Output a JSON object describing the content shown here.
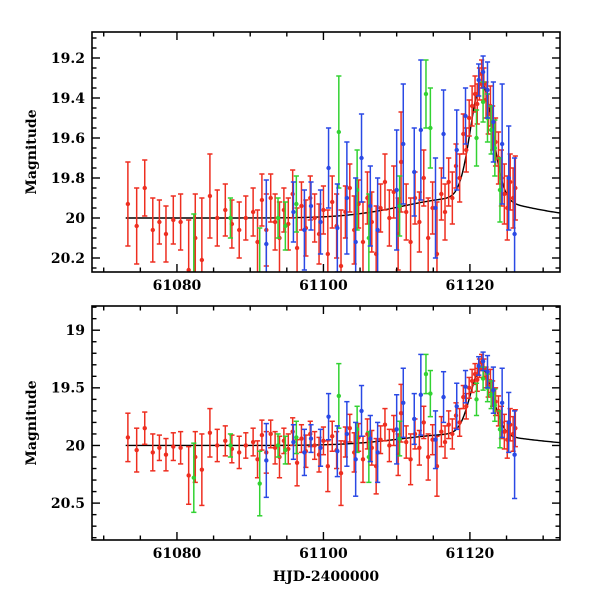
{
  "figure": {
    "background": "#ffffff",
    "description": "Two-panel astronomical light curve: magnitude versus HJD-2400000 with three telescope datasets (red, green, blue) and a black microlensing model curve peaking near HJD 61121.6 at magnitude ~19.3 over a baseline of 20.0."
  },
  "chart_data": {
    "type": "scatter",
    "title": "",
    "xlabel": "HJD-2400000",
    "ylabel": "Magnitude",
    "x_axis": {
      "lim": [
        61068.4,
        61132.3
      ],
      "major_ticks": [
        61080,
        61100,
        61120
      ],
      "major_labels": [
        "61080",
        "61100",
        "61120"
      ],
      "minor_step": 5
    },
    "panels": [
      {
        "name": "top",
        "ylabel": "Magnitude",
        "y_lim": [
          19.07,
          20.27
        ],
        "y_major_ticks": [
          19.2,
          19.4,
          19.6,
          19.8,
          20.0,
          20.2
        ],
        "y_major_labels": [
          "19.2",
          "19.4",
          "19.6",
          "19.8",
          "20",
          "20.2"
        ],
        "y_minor_step": 0.05,
        "y_inverted_note": "magnitude increases downward"
      },
      {
        "name": "bottom",
        "ylabel": "Magnitude",
        "y_lim": [
          18.79,
          20.82
        ],
        "y_major_ticks": [
          19.0,
          19.5,
          20.0,
          20.5
        ],
        "y_major_labels": [
          "19",
          "19.5",
          "20",
          "20.5"
        ],
        "y_minor_step": 0.1,
        "y_inverted_note": "magnitude increases downward"
      }
    ],
    "model": {
      "color": "#000000",
      "baseline": 20.0,
      "t_start": 61073.0,
      "components": [
        {
          "center": 61119.0,
          "sigma": 8.0,
          "amp": 0.1
        },
        {
          "center": 61121.6,
          "sigma": 1.5,
          "amp": 0.58
        }
      ]
    },
    "series": [
      {
        "name": "red",
        "color": "#ee2e20",
        "points": [
          [
            61073.3,
            19.93,
            0.21
          ],
          [
            61074.5,
            20.04,
            0.19
          ],
          [
            61075.6,
            19.85,
            0.14
          ],
          [
            61076.7,
            20.06,
            0.16
          ],
          [
            61077.6,
            20.02,
            0.11
          ],
          [
            61078.5,
            20.08,
            0.14
          ],
          [
            61079.5,
            20.01,
            0.12
          ],
          [
            61080.5,
            20.02,
            0.14
          ],
          [
            61081.6,
            20.26,
            0.25
          ],
          [
            61082.5,
            20.1,
            0.22
          ],
          [
            61083.4,
            20.21,
            0.31
          ],
          [
            61084.5,
            19.89,
            0.21
          ],
          [
            61085.5,
            20.0,
            0.14
          ],
          [
            61086.6,
            19.96,
            0.13
          ],
          [
            61087.5,
            20.03,
            0.12
          ],
          [
            61088.5,
            20.06,
            0.14
          ],
          [
            61089.4,
            20.0,
            0.11
          ],
          [
            61090.4,
            19.97,
            0.12
          ],
          [
            61091.0,
            20.12,
            0.16
          ],
          [
            61091.6,
            19.91,
            0.13
          ],
          [
            61092.2,
            20.06,
            0.18
          ],
          [
            61092.8,
            19.9,
            0.12
          ],
          [
            61093.4,
            20.02,
            0.14
          ],
          [
            61094.0,
            20.1,
            0.18
          ],
          [
            61094.6,
            19.96,
            0.11
          ],
          [
            61095.2,
            20.03,
            0.13
          ],
          [
            61095.8,
            19.88,
            0.12
          ],
          [
            61096.4,
            20.15,
            0.2
          ],
          [
            61097.0,
            19.94,
            0.12
          ],
          [
            61097.6,
            20.05,
            0.14
          ],
          [
            61098.2,
            19.9,
            0.11
          ],
          [
            61098.8,
            20.0,
            0.12
          ],
          [
            61099.4,
            20.08,
            0.15
          ],
          [
            61100.0,
            19.96,
            0.12
          ],
          [
            61100.6,
            20.18,
            0.22
          ],
          [
            61101.2,
            19.92,
            0.13
          ],
          [
            61101.8,
            20.04,
            0.16
          ],
          [
            61102.4,
            20.24,
            0.28
          ],
          [
            61103.0,
            19.97,
            0.13
          ],
          [
            61103.6,
            19.85,
            0.12
          ],
          [
            61104.2,
            20.06,
            0.17
          ],
          [
            61104.8,
            19.93,
            0.12
          ],
          [
            61105.4,
            20.12,
            0.2
          ],
          [
            61106.0,
            19.9,
            0.13
          ],
          [
            61106.6,
            20.02,
            0.15
          ],
          [
            61107.2,
            20.18,
            0.24
          ],
          [
            61107.8,
            19.95,
            0.12
          ],
          [
            61108.4,
            19.82,
            0.14
          ],
          [
            61109.0,
            20.0,
            0.14
          ],
          [
            61109.6,
            19.87,
            0.13
          ],
          [
            61110.2,
            20.08,
            0.18
          ],
          [
            61110.6,
            19.72,
            0.25
          ],
          [
            61111.3,
            19.97,
            0.14
          ],
          [
            61111.9,
            20.12,
            0.22
          ],
          [
            61112.5,
            19.9,
            0.13
          ],
          [
            61113.1,
            20.02,
            0.15
          ],
          [
            61113.7,
            19.8,
            0.14
          ],
          [
            61114.3,
            20.1,
            0.2
          ],
          [
            61114.9,
            19.95,
            0.13
          ],
          [
            61115.5,
            20.18,
            0.26
          ],
          [
            61116.1,
            19.88,
            0.13
          ],
          [
            61116.6,
            19.97,
            0.14
          ],
          [
            61117.1,
            19.82,
            0.12
          ],
          [
            61117.6,
            19.9,
            0.13
          ],
          [
            61118.1,
            19.74,
            0.11
          ],
          [
            61118.6,
            19.8,
            0.12
          ],
          [
            61119.1,
            19.58,
            0.1
          ],
          [
            61119.5,
            19.66,
            0.11
          ],
          [
            61119.9,
            19.5,
            0.09
          ],
          [
            61120.3,
            19.44,
            0.1
          ],
          [
            61120.7,
            19.38,
            0.09
          ],
          [
            61121.0,
            19.43,
            0.1
          ],
          [
            61121.3,
            19.33,
            0.08
          ],
          [
            61121.6,
            19.28,
            0.07
          ],
          [
            61121.9,
            19.33,
            0.08
          ],
          [
            61122.2,
            19.41,
            0.09
          ],
          [
            61122.5,
            19.48,
            0.1
          ],
          [
            61122.8,
            19.44,
            0.1
          ],
          [
            61123.1,
            19.55,
            0.11
          ],
          [
            61123.5,
            19.62,
            0.12
          ],
          [
            61123.9,
            19.7,
            0.13
          ],
          [
            61124.3,
            19.8,
            0.14
          ],
          [
            61124.7,
            19.88,
            0.15
          ],
          [
            61125.1,
            19.95,
            0.16
          ],
          [
            61125.5,
            19.82,
            0.14
          ],
          [
            61125.9,
            19.9,
            0.15
          ],
          [
            61126.2,
            19.85,
            0.16
          ]
        ]
      },
      {
        "name": "green",
        "color": "#32d232",
        "points": [
          [
            61082.3,
            20.28,
            0.3
          ],
          [
            61087.3,
            20.0,
            0.1
          ],
          [
            61091.3,
            20.33,
            0.28
          ],
          [
            61093.8,
            20.0,
            0.1
          ],
          [
            61094.8,
            20.04,
            0.12
          ],
          [
            61096.3,
            19.93,
            0.14
          ],
          [
            61102.1,
            19.57,
            0.28
          ],
          [
            61104.6,
            19.86,
            0.2
          ],
          [
            61106.2,
            20.1,
            0.22
          ],
          [
            61110.4,
            19.94,
            0.15
          ],
          [
            61114.0,
            19.38,
            0.17
          ],
          [
            61114.6,
            19.55,
            0.2
          ],
          [
            61120.9,
            19.6,
            0.14
          ],
          [
            61121.8,
            19.42,
            0.1
          ],
          [
            61122.4,
            19.5,
            0.12
          ],
          [
            61122.9,
            19.56,
            0.12
          ],
          [
            61123.4,
            19.65,
            0.14
          ],
          [
            61124.1,
            19.86,
            0.16
          ]
        ]
      },
      {
        "name": "blue",
        "color": "#2a49e5",
        "points": [
          [
            61092.2,
            20.13,
            0.32
          ],
          [
            61095.9,
            19.97,
            0.15
          ],
          [
            61097.4,
            20.06,
            0.2
          ],
          [
            61098.3,
            19.94,
            0.12
          ],
          [
            61099.6,
            20.02,
            0.16
          ],
          [
            61100.7,
            19.75,
            0.2
          ],
          [
            61101.9,
            20.05,
            0.22
          ],
          [
            61103.2,
            19.9,
            0.28
          ],
          [
            61104.4,
            20.12,
            0.32
          ],
          [
            61105.2,
            19.7,
            0.22
          ],
          [
            61106.4,
            19.94,
            0.2
          ],
          [
            61107.4,
            20.06,
            0.26
          ],
          [
            61110.0,
            19.86,
            0.3
          ],
          [
            61110.9,
            19.63,
            0.3
          ],
          [
            61112.4,
            19.77,
            0.22
          ],
          [
            61113.3,
            19.56,
            0.35
          ],
          [
            61115.3,
            19.95,
            0.25
          ],
          [
            61116.4,
            19.58,
            0.22
          ],
          [
            61118.2,
            19.66,
            0.2
          ],
          [
            61119.4,
            19.49,
            0.14
          ],
          [
            61121.2,
            19.31,
            0.08
          ],
          [
            61121.8,
            19.27,
            0.08
          ],
          [
            61122.4,
            19.36,
            0.14
          ],
          [
            61123.2,
            19.52,
            0.2
          ],
          [
            61124.4,
            19.63,
            0.3
          ],
          [
            61125.3,
            19.8,
            0.26
          ],
          [
            61126.1,
            20.08,
            0.38
          ]
        ]
      }
    ]
  }
}
